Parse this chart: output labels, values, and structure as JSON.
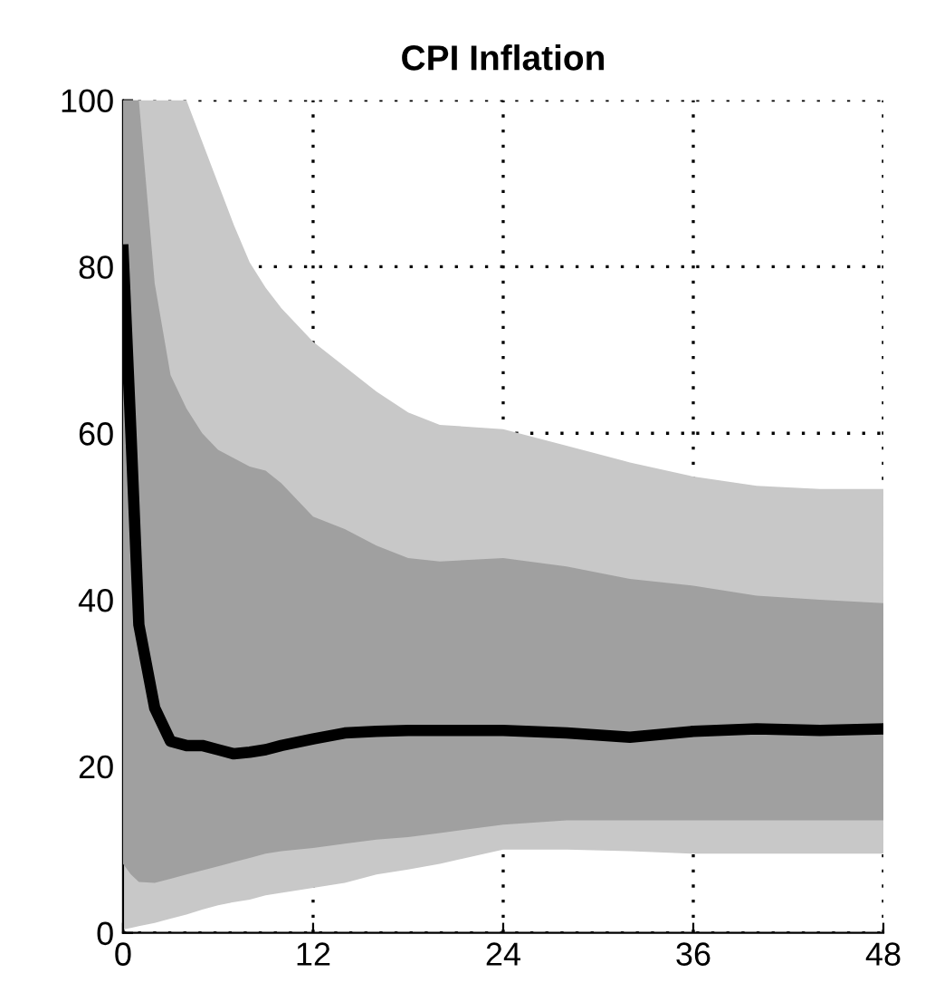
{
  "chart_data": {
    "type": "line",
    "title": "CPI Inflation",
    "x": [
      0,
      0.5,
      1,
      2,
      3,
      4,
      5,
      6,
      7,
      8,
      9,
      10,
      12,
      14,
      16,
      18,
      20,
      24,
      28,
      32,
      36,
      40,
      44,
      48
    ],
    "series": [
      {
        "color": "#c8c8c8",
        "values": [
          null,
          null,
          null,
          null,
          null,
          null,
          null,
          null,
          null,
          null,
          null,
          null,
          null,
          null,
          null,
          null,
          null,
          null,
          null,
          null,
          null,
          null,
          null,
          null
        ],
        "lower": [
          0.4,
          0.6,
          0.8,
          1.2,
          1.7,
          2.2,
          2.8,
          3.3,
          3.7,
          4,
          4.5,
          4.8,
          5.4,
          6,
          7,
          7.6,
          8.3,
          10,
          10,
          9.8,
          9.5,
          9.5,
          9.5,
          9.5
        ],
        "upper": [
          100,
          100,
          100,
          100,
          100,
          100,
          95,
          90,
          85,
          80.5,
          77.5,
          75,
          71,
          68,
          65,
          62.5,
          61,
          60.5,
          58.5,
          56.5,
          54.8,
          53.7,
          53.3,
          53.3
        ]
      },
      {
        "color": "#a0a0a0",
        "values": [
          null,
          null,
          null,
          null,
          null,
          null,
          null,
          null,
          null,
          null,
          null,
          null,
          null,
          null,
          null,
          null,
          null,
          null,
          null,
          null,
          null,
          null,
          null,
          null
        ],
        "lower": [
          8.3,
          7,
          6.1,
          6,
          6.5,
          7,
          7.5,
          8,
          8.5,
          9,
          9.5,
          9.8,
          10.2,
          10.7,
          11.2,
          11.5,
          12,
          13,
          13.5,
          13.5,
          13.5,
          13.5,
          13.5,
          13.5
        ],
        "upper": [
          100,
          100,
          100,
          78,
          67,
          63,
          60,
          58,
          57,
          56,
          55.5,
          54,
          50,
          48.5,
          46.5,
          45,
          44.6,
          45,
          44,
          42.5,
          41.7,
          40.5,
          40,
          39.6
        ]
      },
      {
        "color": "#000000",
        "values": [
          82,
          60,
          37,
          27,
          23,
          22.5,
          22.5,
          22,
          21.5,
          21.7,
          22,
          22.5,
          23.3,
          24,
          24.2,
          24.3,
          24.3,
          24.3,
          24,
          23.5,
          24.2,
          24.5,
          24.3,
          24.5
        ]
      }
    ],
    "xlim": [
      0,
      48
    ],
    "xticks": [
      0,
      12,
      24,
      36,
      48
    ],
    "ylim": [
      0,
      100
    ],
    "yticks": [
      0,
      20,
      40,
      60,
      80,
      100
    ],
    "grid": true,
    "line_style": "solid",
    "marker": "none"
  }
}
